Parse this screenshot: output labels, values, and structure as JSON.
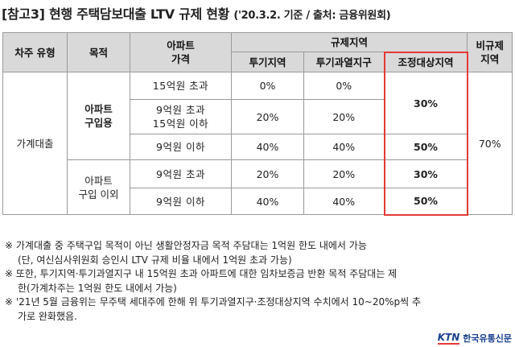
{
  "title": {
    "main": "[참고3] 현행 주택담보대출 LTV 규제 현황",
    "source": "('20.3.2. 기준 / 출처: 금융위원회)"
  },
  "table": {
    "headers": {
      "borrower_type": "차주 유형",
      "purpose": "목적",
      "apt_price": "아파트\n가격",
      "regulated_zone": "규제지역",
      "speculative_zone": "투기지역",
      "overheated_zone": "투기과열지구",
      "adjustment_zone": "조정대상지역",
      "non_regulated_zone": "비규제\n지역"
    },
    "borrower_type_value": "가계대출",
    "purpose_purchase": "아파트\n구입용",
    "purpose_other": "아파트\n구입 이외",
    "non_regulated_value": "70%",
    "rows": [
      {
        "price": "15억원 초과",
        "speculative": "0%",
        "overheated": "0%",
        "adjustment": "30%"
      },
      {
        "price": "9억원 초과\n15억원 이하",
        "speculative": "20%",
        "overheated": "20%"
      },
      {
        "price": "9억원 이하",
        "speculative": "40%",
        "overheated": "40%",
        "adjustment": "50%"
      },
      {
        "price": "9억원 초과",
        "speculative": "20%",
        "overheated": "20%",
        "adjustment": "30%"
      },
      {
        "price": "9억원 이하",
        "speculative": "40%",
        "overheated": "40%",
        "adjustment": "50%"
      }
    ]
  },
  "notes": [
    "※ 가계대출 중 주택구입 목적이 아닌 생활안정자금 목적 주담대는 1억원 한도 내에서 가능",
    "(단, 여신심사위원회 승인시 LTV 규제 비율 내에서 1억원 초과 가능)",
    "※ 또한, 투기지역·투기과열지구 내 15억원 초과 아파트에 대한 임차보증금 반환 목적 주담대는 제",
    "한(가계차주는 1억원 한도 내에서 가능)",
    "※ '21년 5월 금융위는 무주택 세대주에 한해 위 투기과열지구·조정대상지역 수치에서 10~20%p씩 추",
    "가로 완화했음."
  ],
  "logo": {
    "mark": "KTN",
    "name": "한국유통신문"
  },
  "colors": {
    "header_bg": "#d9d9d9",
    "highlight_border": "#e53935",
    "logo_blue": "#1a3f8f"
  }
}
